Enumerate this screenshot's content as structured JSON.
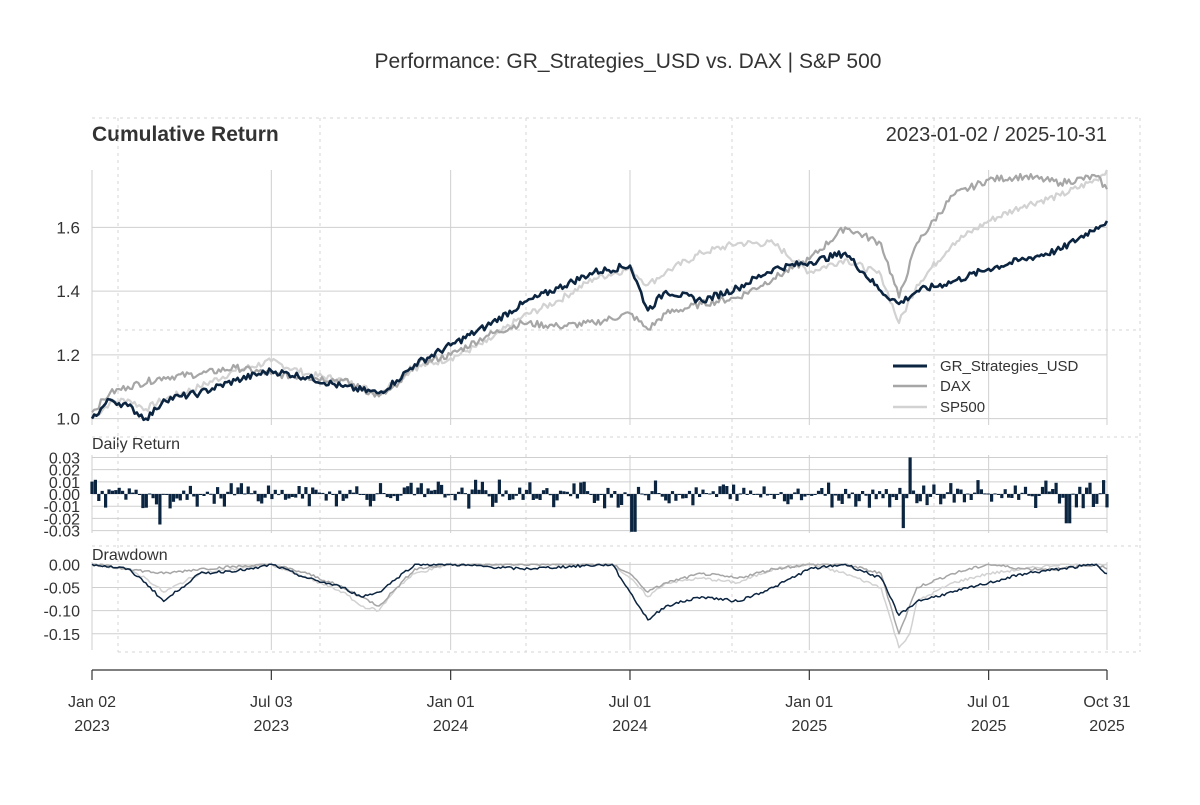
{
  "title": "Performance: GR_Strategies_USD vs. DAX | S&P 500",
  "date_range": "2023-01-02 / 2025-10-31",
  "colors": {
    "gr": "#0b2440",
    "dax": "#a6a6a6",
    "sp": "#d2d2d2",
    "grid": "#cfcfcf",
    "text": "#333333"
  },
  "x_axis": {
    "ticks": [
      {
        "label": "Jan 02",
        "year": "2023",
        "t": 0.0
      },
      {
        "label": "Jul 03",
        "year": "2023",
        "t": 0.5
      },
      {
        "label": "Jan 01",
        "year": "2024",
        "t": 1.0
      },
      {
        "label": "Jul 01",
        "year": "2024",
        "t": 1.5
      },
      {
        "label": "Jan 01",
        "year": "2025",
        "t": 2.0
      },
      {
        "label": "Jul 01",
        "year": "2025",
        "t": 2.5
      },
      {
        "label": "Oct 31",
        "year": "2025",
        "t": 2.83
      }
    ]
  },
  "chart_data": [
    {
      "type": "line",
      "title": "Cumulative Return",
      "x_units": "years since 2023-01-02",
      "xlim": [
        0,
        2.83
      ],
      "ylim": [
        0.98,
        1.78
      ],
      "yticks": [
        "1.0",
        "1.2",
        "1.4",
        "1.6"
      ],
      "series": [
        {
          "name": "GR_Strategies_USD",
          "key": "gr",
          "x": [
            0,
            0.05,
            0.1,
            0.15,
            0.18,
            0.2,
            0.25,
            0.3,
            0.4,
            0.5,
            0.6,
            0.7,
            0.8,
            0.85,
            0.9,
            1.0,
            1.1,
            1.2,
            1.3,
            1.4,
            1.5,
            1.55,
            1.6,
            1.7,
            1.8,
            1.9,
            2.0,
            2.1,
            2.2,
            2.25,
            2.3,
            2.4,
            2.5,
            2.6,
            2.7,
            2.8,
            2.83
          ],
          "values": [
            1.0,
            1.06,
            1.04,
            1.0,
            1.03,
            1.06,
            1.07,
            1.08,
            1.12,
            1.15,
            1.13,
            1.1,
            1.08,
            1.12,
            1.17,
            1.23,
            1.29,
            1.36,
            1.41,
            1.46,
            1.48,
            1.34,
            1.4,
            1.37,
            1.41,
            1.47,
            1.49,
            1.52,
            1.4,
            1.36,
            1.4,
            1.43,
            1.47,
            1.5,
            1.53,
            1.6,
            1.62
          ]
        },
        {
          "name": "DAX",
          "key": "dax",
          "x": [
            0,
            0.05,
            0.1,
            0.2,
            0.3,
            0.4,
            0.5,
            0.6,
            0.7,
            0.8,
            0.85,
            0.9,
            1.0,
            1.1,
            1.2,
            1.3,
            1.4,
            1.5,
            1.55,
            1.6,
            1.7,
            1.8,
            1.9,
            2.0,
            2.1,
            2.2,
            2.25,
            2.3,
            2.4,
            2.5,
            2.6,
            2.7,
            2.8,
            2.83
          ],
          "values": [
            1.02,
            1.08,
            1.1,
            1.13,
            1.14,
            1.16,
            1.14,
            1.13,
            1.12,
            1.07,
            1.1,
            1.17,
            1.2,
            1.26,
            1.3,
            1.29,
            1.3,
            1.33,
            1.28,
            1.33,
            1.36,
            1.38,
            1.44,
            1.5,
            1.6,
            1.55,
            1.38,
            1.55,
            1.7,
            1.75,
            1.76,
            1.74,
            1.76,
            1.72
          ]
        },
        {
          "name": "SP500",
          "key": "sp",
          "x": [
            0,
            0.05,
            0.1,
            0.15,
            0.2,
            0.3,
            0.4,
            0.5,
            0.6,
            0.7,
            0.8,
            0.85,
            0.9,
            1.0,
            1.1,
            1.2,
            1.3,
            1.4,
            1.5,
            1.55,
            1.6,
            1.7,
            1.8,
            1.9,
            2.0,
            2.1,
            2.2,
            2.25,
            2.3,
            2.4,
            2.5,
            2.6,
            2.7,
            2.8,
            2.83
          ],
          "values": [
            1.0,
            1.05,
            1.06,
            1.03,
            1.06,
            1.1,
            1.15,
            1.18,
            1.14,
            1.12,
            1.08,
            1.12,
            1.16,
            1.19,
            1.24,
            1.32,
            1.37,
            1.44,
            1.47,
            1.42,
            1.46,
            1.52,
            1.55,
            1.55,
            1.46,
            1.5,
            1.45,
            1.3,
            1.42,
            1.55,
            1.62,
            1.67,
            1.7,
            1.75,
            1.78
          ]
        }
      ],
      "legend": "bottom-right",
      "legend_entries": [
        "GR_Strategies_USD",
        "DAX",
        "SP500"
      ]
    },
    {
      "type": "bar",
      "title": "Daily Return",
      "series_name": "GR_Strategies_USD",
      "xlim": [
        0,
        2.83
      ],
      "ylim": [
        -0.032,
        0.032
      ],
      "yticks": [
        "0.03",
        "0.02",
        "0.01",
        "0.00",
        "-0.01",
        "-0.02",
        "-0.03"
      ],
      "notable_values": [
        {
          "x": 0.19,
          "value": -0.025
        },
        {
          "x": 1.51,
          "value": -0.031
        },
        {
          "x": 2.28,
          "value": 0.03
        },
        {
          "x": 2.26,
          "value": -0.028
        },
        {
          "x": 2.72,
          "value": -0.024
        }
      ],
      "typical_range": [
        -0.012,
        0.012
      ]
    },
    {
      "type": "line",
      "title": "Drawdown",
      "xlim": [
        0,
        2.83
      ],
      "ylim": [
        -0.185,
        0.005
      ],
      "yticks": [
        "0.00",
        "-0.05",
        "-0.10",
        "-0.15"
      ],
      "series": [
        {
          "name": "GR_Strategies_USD",
          "key": "gr",
          "x": [
            0,
            0.1,
            0.15,
            0.2,
            0.25,
            0.3,
            0.45,
            0.5,
            0.6,
            0.7,
            0.75,
            0.8,
            0.85,
            0.9,
            1.0,
            1.2,
            1.45,
            1.5,
            1.55,
            1.6,
            1.7,
            1.8,
            1.9,
            2.0,
            2.1,
            2.2,
            2.25,
            2.3,
            2.4,
            2.5,
            2.6,
            2.7,
            2.8,
            2.83
          ],
          "values": [
            0,
            -0.01,
            -0.04,
            -0.08,
            -0.05,
            -0.02,
            -0.01,
            0,
            -0.03,
            -0.05,
            -0.07,
            -0.06,
            -0.03,
            0,
            0,
            -0.01,
            0,
            -0.06,
            -0.12,
            -0.09,
            -0.07,
            -0.08,
            -0.05,
            -0.01,
            0,
            -0.03,
            -0.11,
            -0.08,
            -0.06,
            -0.04,
            -0.02,
            -0.01,
            0,
            -0.02
          ]
        },
        {
          "name": "DAX",
          "key": "dax",
          "x": [
            0,
            0.1,
            0.2,
            0.3,
            0.5,
            0.6,
            0.7,
            0.75,
            0.8,
            0.85,
            0.9,
            1.0,
            1.2,
            1.45,
            1.5,
            1.55,
            1.6,
            1.7,
            1.8,
            1.9,
            2.0,
            2.1,
            2.2,
            2.25,
            2.3,
            2.4,
            2.5,
            2.6,
            2.7,
            2.8,
            2.83
          ],
          "values": [
            0,
            -0.01,
            -0.02,
            -0.01,
            0,
            -0.02,
            -0.05,
            -0.07,
            -0.09,
            -0.05,
            -0.01,
            0,
            0,
            0,
            -0.02,
            -0.06,
            -0.04,
            -0.02,
            -0.03,
            -0.01,
            0,
            0,
            -0.02,
            -0.15,
            -0.05,
            -0.02,
            0,
            -0.01,
            -0.01,
            0,
            -0.01
          ]
        },
        {
          "name": "SP500",
          "key": "sp",
          "x": [
            0,
            0.1,
            0.15,
            0.2,
            0.3,
            0.5,
            0.6,
            0.7,
            0.75,
            0.8,
            0.85,
            0.9,
            1.0,
            1.2,
            1.45,
            1.5,
            1.55,
            1.6,
            1.7,
            1.8,
            1.9,
            2.0,
            2.1,
            2.2,
            2.25,
            2.28,
            2.3,
            2.4,
            2.5,
            2.6,
            2.7,
            2.8,
            2.83
          ],
          "values": [
            0,
            -0.01,
            -0.03,
            -0.06,
            -0.02,
            0,
            -0.03,
            -0.06,
            -0.09,
            -0.1,
            -0.05,
            -0.02,
            0,
            0,
            0,
            -0.03,
            -0.07,
            -0.04,
            -0.03,
            -0.04,
            -0.01,
            0,
            -0.02,
            -0.05,
            -0.18,
            -0.15,
            -0.08,
            -0.04,
            -0.02,
            -0.01,
            0,
            0,
            0
          ]
        }
      ]
    }
  ]
}
